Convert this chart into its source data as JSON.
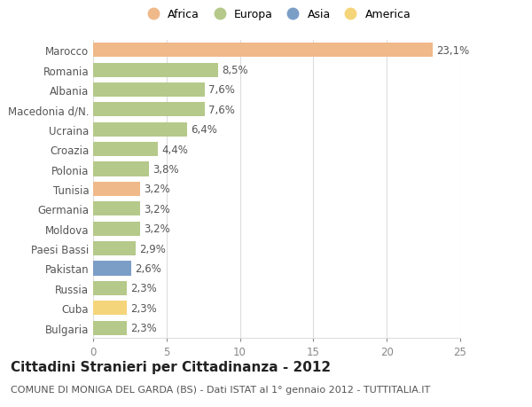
{
  "categories": [
    "Marocco",
    "Romania",
    "Albania",
    "Macedonia d/N.",
    "Ucraina",
    "Croazia",
    "Polonia",
    "Tunisia",
    "Germania",
    "Moldova",
    "Paesi Bassi",
    "Pakistan",
    "Russia",
    "Cuba",
    "Bulgaria"
  ],
  "values": [
    23.1,
    8.5,
    7.6,
    7.6,
    6.4,
    4.4,
    3.8,
    3.2,
    3.2,
    3.2,
    2.9,
    2.6,
    2.3,
    2.3,
    2.3
  ],
  "labels": [
    "23,1%",
    "8,5%",
    "7,6%",
    "7,6%",
    "6,4%",
    "4,4%",
    "3,8%",
    "3,2%",
    "3,2%",
    "3,2%",
    "2,9%",
    "2,6%",
    "2,3%",
    "2,3%",
    "2,3%"
  ],
  "colors": [
    "#f0b989",
    "#b5c98a",
    "#b5c98a",
    "#b5c98a",
    "#b5c98a",
    "#b5c98a",
    "#b5c98a",
    "#f0b989",
    "#b5c98a",
    "#b5c98a",
    "#b5c98a",
    "#7b9ec7",
    "#b5c98a",
    "#f5d57a",
    "#b5c98a"
  ],
  "legend_labels": [
    "Africa",
    "Europa",
    "Asia",
    "America"
  ],
  "legend_colors": [
    "#f0b989",
    "#b5c98a",
    "#7b9ec7",
    "#f5d57a"
  ],
  "title": "Cittadini Stranieri per Cittadinanza - 2012",
  "subtitle": "COMUNE DI MONIGA DEL GARDA (BS) - Dati ISTAT al 1° gennaio 2012 - TUTTITALIA.IT",
  "xlim": [
    0,
    25
  ],
  "xticks": [
    0,
    5,
    10,
    15,
    20,
    25
  ],
  "bg_color": "#ffffff",
  "grid_color": "#dddddd",
  "bar_height": 0.72,
  "label_fontsize": 8.5,
  "tick_fontsize": 8.5,
  "title_fontsize": 11,
  "subtitle_fontsize": 8
}
